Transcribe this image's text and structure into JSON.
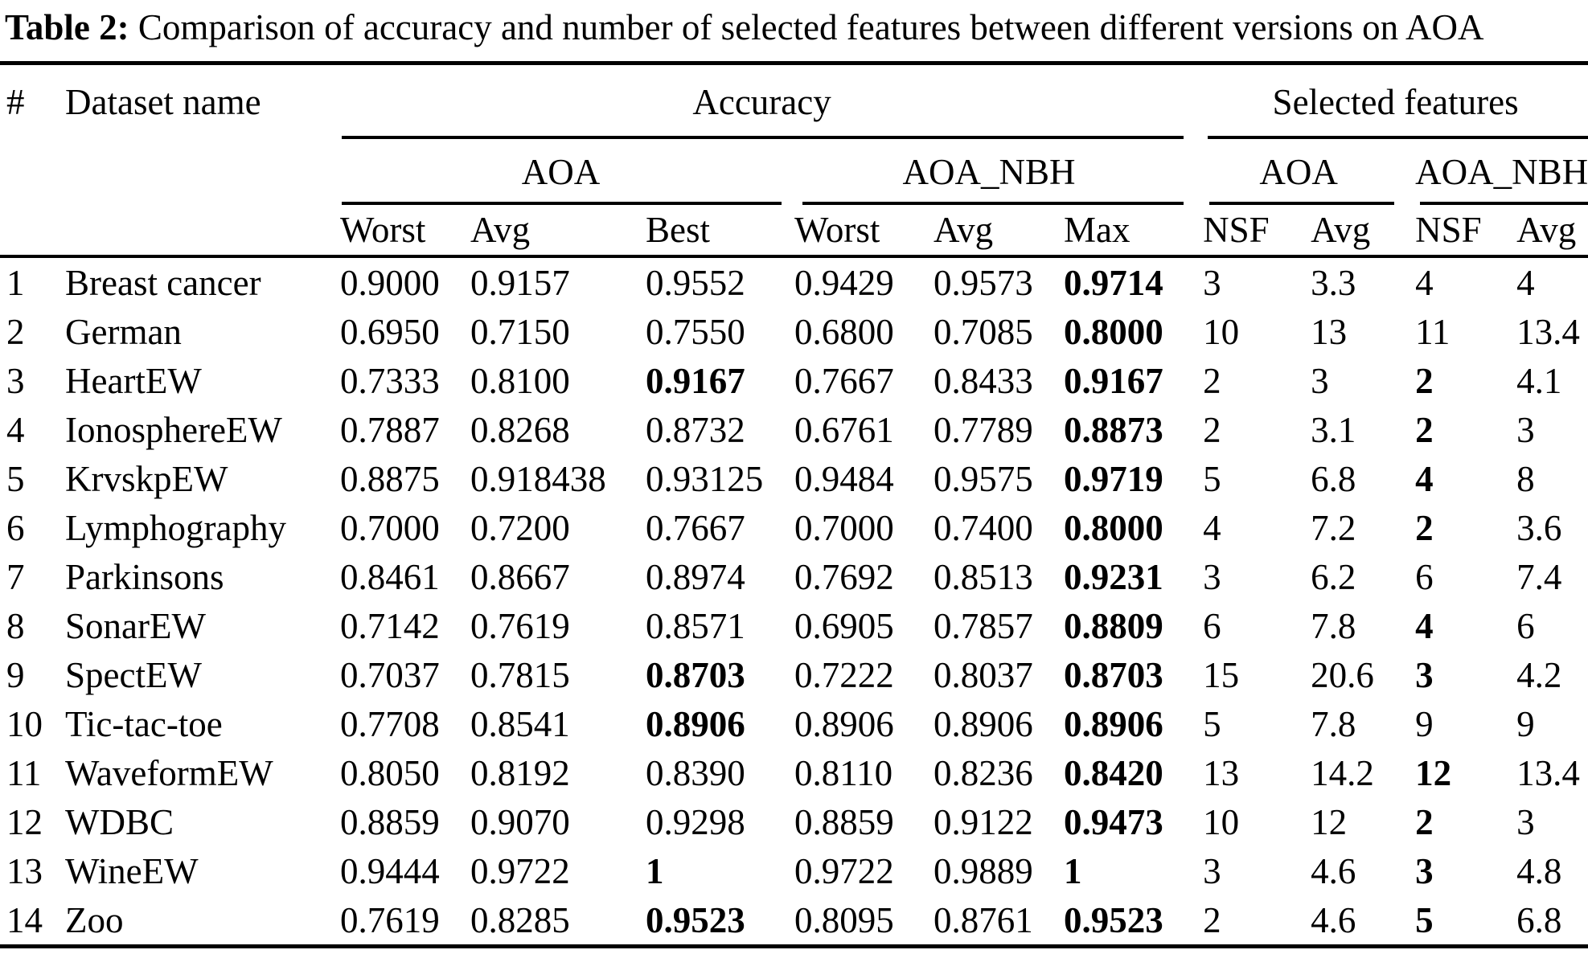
{
  "caption": {
    "label": "Table 2:",
    "text": " Comparison of accuracy and number of selected features between different versions on AOA"
  },
  "header": {
    "col_num": "#",
    "col_dataset": "Dataset name",
    "group_accuracy": "Accuracy",
    "group_selected": "Selected features",
    "sub_aoa_acc": "AOA",
    "sub_aoanbh_acc": "AOA_NBH",
    "sub_aoa_sf": "AOA",
    "sub_aoanbh_sf": "AOA_NBH",
    "cols": [
      "Worst",
      "Avg",
      "Best",
      "Worst",
      "Avg",
      "Max",
      "NSF",
      "Avg",
      "NSF",
      "Avg"
    ]
  },
  "rows": [
    {
      "num": "1",
      "name": "Breast cancer",
      "cells": [
        {
          "v": "0.9000"
        },
        {
          "v": "0.9157"
        },
        {
          "v": "0.9552"
        },
        {
          "v": "0.9429"
        },
        {
          "v": "0.9573"
        },
        {
          "v": "0.9714",
          "b": true
        },
        {
          "v": "3"
        },
        {
          "v": "3.3"
        },
        {
          "v": "4"
        },
        {
          "v": "4"
        }
      ]
    },
    {
      "num": "2",
      "name": "German",
      "cells": [
        {
          "v": "0.6950"
        },
        {
          "v": "0.7150"
        },
        {
          "v": "0.7550"
        },
        {
          "v": "0.6800"
        },
        {
          "v": "0.7085"
        },
        {
          "v": "0.8000",
          "b": true
        },
        {
          "v": "10"
        },
        {
          "v": "13"
        },
        {
          "v": "11"
        },
        {
          "v": "13.4"
        }
      ]
    },
    {
      "num": "3",
      "name": "HeartEW",
      "cells": [
        {
          "v": "0.7333"
        },
        {
          "v": "0.8100"
        },
        {
          "v": "0.9167",
          "b": true
        },
        {
          "v": "0.7667"
        },
        {
          "v": "0.8433"
        },
        {
          "v": "0.9167",
          "b": true
        },
        {
          "v": "2"
        },
        {
          "v": "3"
        },
        {
          "v": "2",
          "b": true
        },
        {
          "v": "4.1"
        }
      ]
    },
    {
      "num": "4",
      "name": "IonosphereEW",
      "cells": [
        {
          "v": "0.7887"
        },
        {
          "v": "0.8268"
        },
        {
          "v": "0.8732"
        },
        {
          "v": "0.6761"
        },
        {
          "v": "0.7789"
        },
        {
          "v": "0.8873",
          "b": true
        },
        {
          "v": "2"
        },
        {
          "v": "3.1"
        },
        {
          "v": "2",
          "b": true
        },
        {
          "v": "3"
        }
      ]
    },
    {
      "num": "5",
      "name": "KrvskpEW",
      "cells": [
        {
          "v": "0.8875"
        },
        {
          "v": "0.918438"
        },
        {
          "v": "0.93125"
        },
        {
          "v": "0.9484"
        },
        {
          "v": "0.9575"
        },
        {
          "v": "0.9719",
          "b": true
        },
        {
          "v": "5"
        },
        {
          "v": "6.8"
        },
        {
          "v": "4",
          "b": true
        },
        {
          "v": "8"
        }
      ]
    },
    {
      "num": "6",
      "name": "Lymphography",
      "cells": [
        {
          "v": "0.7000"
        },
        {
          "v": "0.7200"
        },
        {
          "v": "0.7667"
        },
        {
          "v": "0.7000"
        },
        {
          "v": "0.7400"
        },
        {
          "v": "0.8000",
          "b": true
        },
        {
          "v": "4"
        },
        {
          "v": "7.2"
        },
        {
          "v": "2",
          "b": true
        },
        {
          "v": "3.6"
        }
      ]
    },
    {
      "num": "7",
      "name": "Parkinsons",
      "cells": [
        {
          "v": "0.8461"
        },
        {
          "v": "0.8667"
        },
        {
          "v": "0.8974"
        },
        {
          "v": "0.7692"
        },
        {
          "v": "0.8513"
        },
        {
          "v": "0.9231",
          "b": true
        },
        {
          "v": "3"
        },
        {
          "v": "6.2"
        },
        {
          "v": "6"
        },
        {
          "v": "7.4"
        }
      ]
    },
    {
      "num": "8",
      "name": "SonarEW",
      "cells": [
        {
          "v": "0.7142"
        },
        {
          "v": "0.7619"
        },
        {
          "v": "0.8571"
        },
        {
          "v": "0.6905"
        },
        {
          "v": "0.7857"
        },
        {
          "v": "0.8809",
          "b": true
        },
        {
          "v": "6"
        },
        {
          "v": "7.8"
        },
        {
          "v": "4",
          "b": true
        },
        {
          "v": "6"
        }
      ]
    },
    {
      "num": "9",
      "name": "SpectEW",
      "cells": [
        {
          "v": "0.7037"
        },
        {
          "v": "0.7815"
        },
        {
          "v": "0.8703",
          "b": true
        },
        {
          "v": "0.7222"
        },
        {
          "v": "0.8037"
        },
        {
          "v": "0.8703",
          "b": true
        },
        {
          "v": "15"
        },
        {
          "v": "20.6"
        },
        {
          "v": "3",
          "b": true
        },
        {
          "v": "4.2"
        }
      ]
    },
    {
      "num": "10",
      "name": "Tic-tac-toe",
      "cells": [
        {
          "v": "0.7708"
        },
        {
          "v": "0.8541"
        },
        {
          "v": "0.8906",
          "b": true
        },
        {
          "v": "0.8906"
        },
        {
          "v": "0.8906"
        },
        {
          "v": "0.8906",
          "b": true
        },
        {
          "v": "5"
        },
        {
          "v": "7.8"
        },
        {
          "v": "9"
        },
        {
          "v": "9"
        }
      ]
    },
    {
      "num": "11",
      "name": "WaveformEW",
      "cells": [
        {
          "v": "0.8050"
        },
        {
          "v": "0.8192"
        },
        {
          "v": "0.8390"
        },
        {
          "v": "0.8110"
        },
        {
          "v": "0.8236"
        },
        {
          "v": "0.8420",
          "b": true
        },
        {
          "v": "13"
        },
        {
          "v": "14.2"
        },
        {
          "v": "12",
          "b": true
        },
        {
          "v": "13.4"
        }
      ]
    },
    {
      "num": "12",
      "name": "WDBC",
      "cells": [
        {
          "v": "0.8859"
        },
        {
          "v": "0.9070"
        },
        {
          "v": "0.9298"
        },
        {
          "v": "0.8859"
        },
        {
          "v": "0.9122"
        },
        {
          "v": "0.9473",
          "b": true
        },
        {
          "v": "10"
        },
        {
          "v": "12"
        },
        {
          "v": "2",
          "b": true
        },
        {
          "v": "3"
        }
      ]
    },
    {
      "num": "13",
      "name": "WineEW",
      "cells": [
        {
          "v": "0.9444"
        },
        {
          "v": "0.9722"
        },
        {
          "v": "1",
          "b": true
        },
        {
          "v": "0.9722"
        },
        {
          "v": "0.9889"
        },
        {
          "v": "1",
          "b": true
        },
        {
          "v": "3"
        },
        {
          "v": "4.6"
        },
        {
          "v": "3",
          "b": true
        },
        {
          "v": "4.8"
        }
      ]
    },
    {
      "num": "14",
      "name": "Zoo",
      "cells": [
        {
          "v": "0.7619"
        },
        {
          "v": "0.8285"
        },
        {
          "v": "0.9523",
          "b": true
        },
        {
          "v": "0.8095"
        },
        {
          "v": "0.8761"
        },
        {
          "v": "0.9523",
          "b": true
        },
        {
          "v": "2"
        },
        {
          "v": "4.6"
        },
        {
          "v": "5",
          "b": true
        },
        {
          "v": "6.8"
        }
      ]
    }
  ]
}
